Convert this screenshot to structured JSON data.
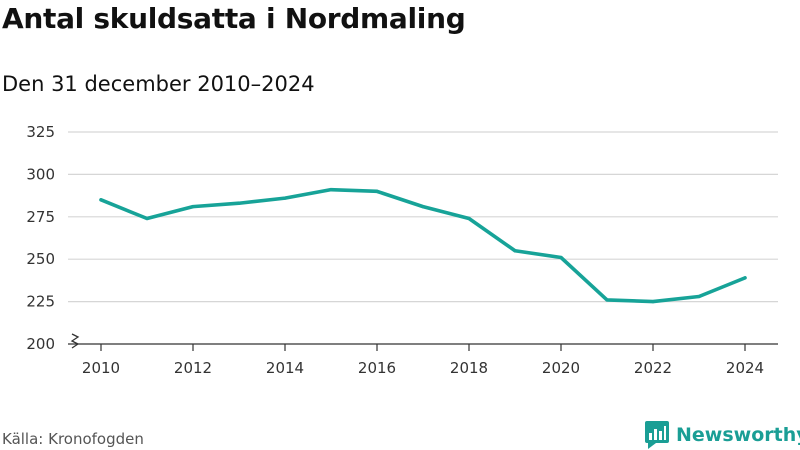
{
  "header": {
    "title": "Antal skuldsatta i Nordmaling",
    "subtitle": "Den 31 december 2010–2024"
  },
  "footer": {
    "source": "Källa: Kronofogden",
    "brand": "Newsworthy"
  },
  "colors": {
    "line": "#17a398",
    "grid": "#d6d6d6",
    "axis": "#333333",
    "brand": "#1a9e95"
  },
  "chart_data": {
    "type": "line",
    "title": "Antal skuldsatta i Nordmaling",
    "subtitle": "Den 31 december 2010–2024",
    "x": [
      2010,
      2011,
      2012,
      2013,
      2014,
      2015,
      2016,
      2017,
      2018,
      2019,
      2020,
      2021,
      2022,
      2023,
      2024
    ],
    "series": [
      {
        "values": [
          285,
          274,
          281,
          283,
          286,
          291,
          290,
          281,
          274,
          255,
          251,
          226,
          225,
          228,
          239
        ]
      }
    ],
    "x_ticks": [
      "2010",
      "2012",
      "2014",
      "2016",
      "2018",
      "2020",
      "2022",
      "2024"
    ],
    "y_ticks": [
      "200",
      "225",
      "250",
      "275",
      "300",
      "325"
    ],
    "ylim": [
      200,
      325
    ],
    "xlim": [
      2010,
      2024
    ],
    "y_axis_break": true,
    "grid": "horizontal",
    "legend": "none"
  }
}
